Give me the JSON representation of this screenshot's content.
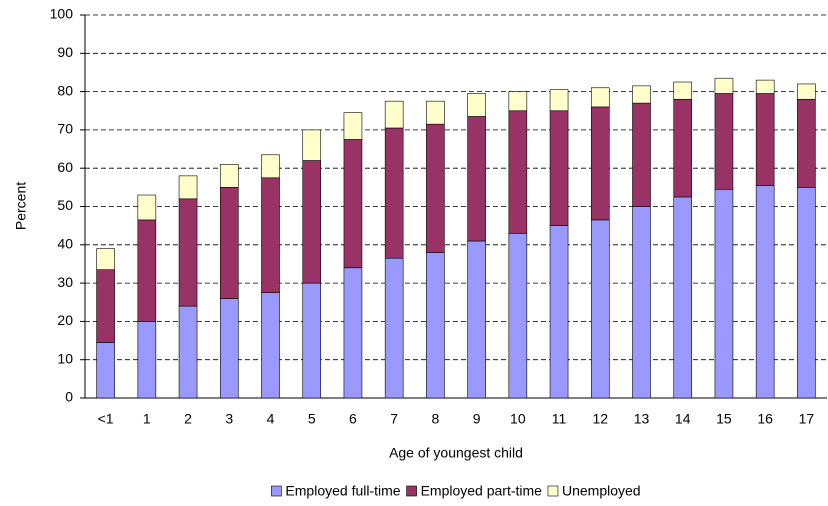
{
  "chart_data": {
    "type": "stacked-bar",
    "y_label": "Percent",
    "x_label": "Age of youngest child",
    "categories": [
      "<1",
      "1",
      "2",
      "3",
      "4",
      "5",
      "6",
      "7",
      "8",
      "9",
      "10",
      "11",
      "12",
      "13",
      "14",
      "15",
      "16",
      "17"
    ],
    "series": [
      {
        "name": "Employed full-time",
        "color": "#9999ff",
        "values": [
          14.5,
          20,
          24,
          26,
          27.5,
          30,
          34,
          36.5,
          38,
          41,
          43,
          45,
          46.5,
          50,
          52.5,
          54.5,
          55.5,
          55
        ]
      },
      {
        "name": "Employed part-time",
        "color": "#993366",
        "values": [
          19,
          26.5,
          28,
          29,
          30,
          32,
          33.5,
          34,
          33.5,
          32.5,
          32,
          30,
          29.5,
          27,
          25.5,
          25,
          24,
          23
        ]
      },
      {
        "name": "Unemployed",
        "color": "#ffffcc",
        "values": [
          5.5,
          6.5,
          6,
          6,
          6,
          8,
          7,
          7,
          6,
          6,
          5,
          5.5,
          5,
          4.5,
          4.5,
          4,
          3.5,
          4
        ]
      }
    ],
    "ylim": [
      0,
      100
    ],
    "yticks": [
      0,
      10,
      20,
      30,
      40,
      50,
      60,
      70,
      80,
      90,
      100
    ],
    "grid": true,
    "legend": "bottom"
  }
}
